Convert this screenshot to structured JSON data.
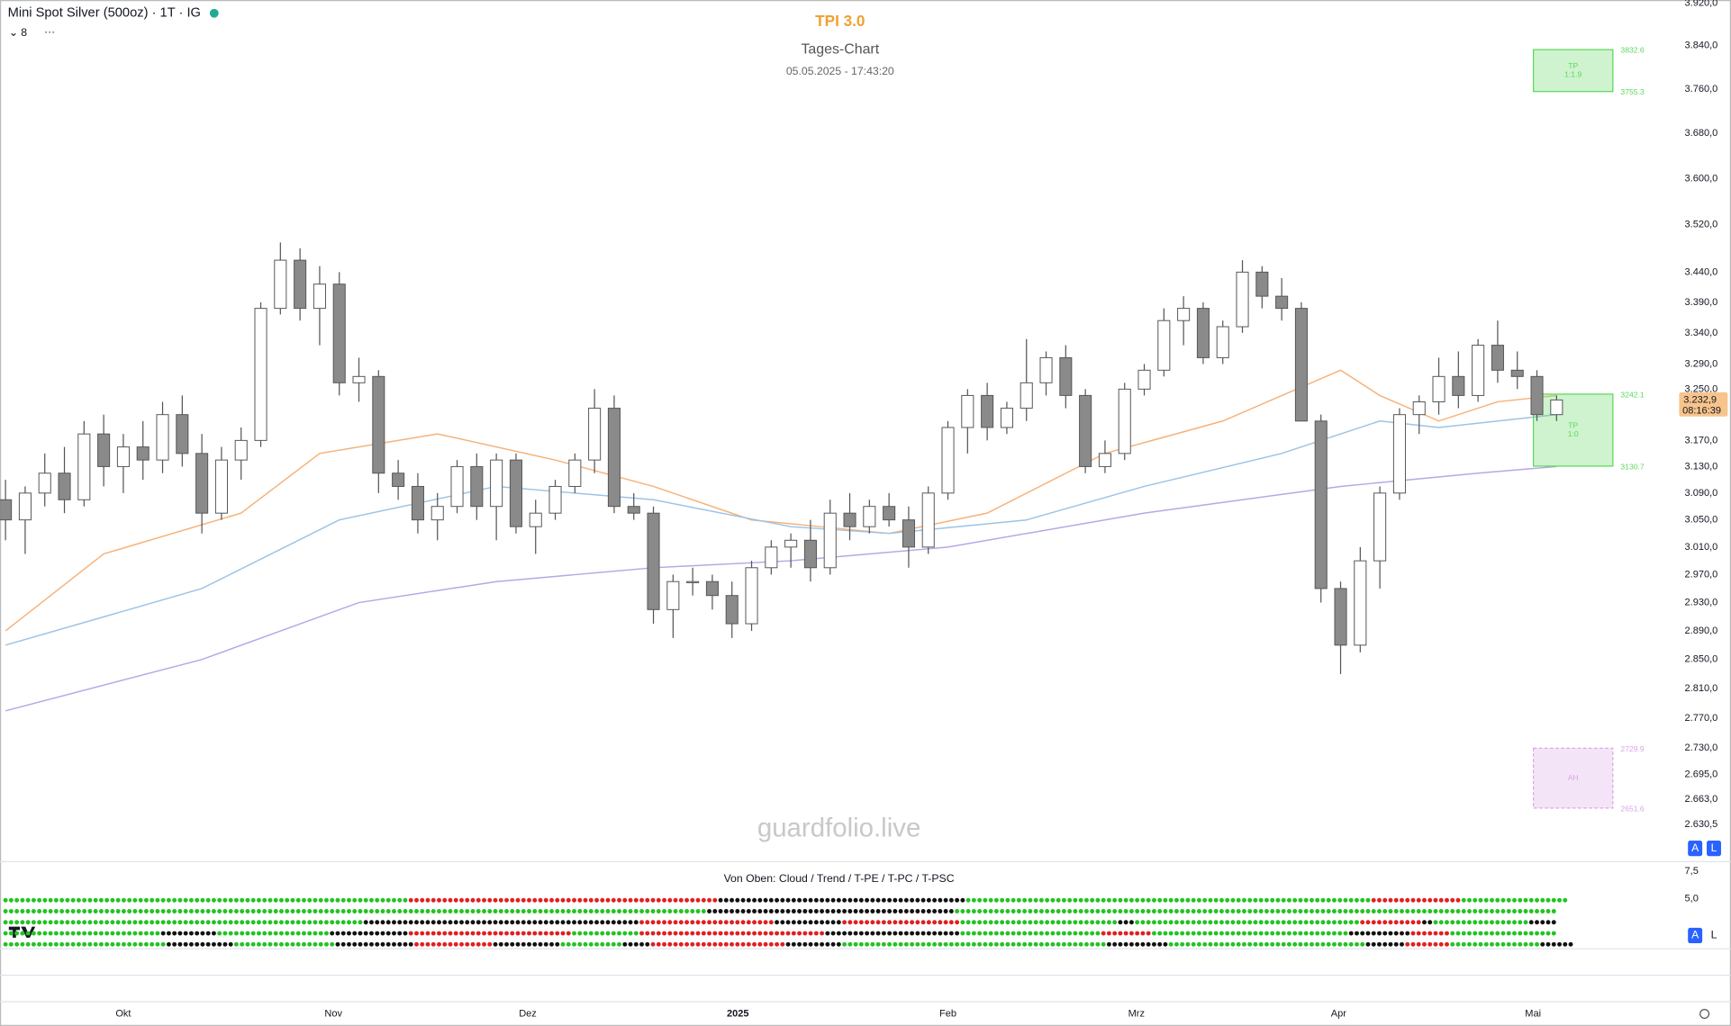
{
  "chart_data": {
    "type": "candlestick",
    "title": "TPI 3.0",
    "subtitle": "Tages-Chart",
    "timestamp": "05.05.2025 - 17:43:20",
    "symbol": "Mini Spot Silver (500oz) · 1T · IG",
    "interval_badge": "8",
    "watermark": "guardfolio.live",
    "log_scale": true,
    "grid": false,
    "up_color": "#ffffff",
    "down_color": "#8a8a8a",
    "candles": [
      [
        3080,
        3110,
        3020,
        3050
      ],
      [
        3050,
        3100,
        3000,
        3090
      ],
      [
        3090,
        3150,
        3070,
        3120
      ],
      [
        3120,
        3160,
        3060,
        3080
      ],
      [
        3080,
        3200,
        3070,
        3180
      ],
      [
        3180,
        3210,
        3100,
        3130
      ],
      [
        3130,
        3180,
        3090,
        3160
      ],
      [
        3160,
        3200,
        3110,
        3140
      ],
      [
        3140,
        3230,
        3120,
        3210
      ],
      [
        3210,
        3240,
        3130,
        3150
      ],
      [
        3150,
        3180,
        3030,
        3060
      ],
      [
        3060,
        3160,
        3050,
        3140
      ],
      [
        3140,
        3190,
        3110,
        3170
      ],
      [
        3170,
        3390,
        3160,
        3380
      ],
      [
        3380,
        3490,
        3370,
        3460
      ],
      [
        3460,
        3480,
        3360,
        3380
      ],
      [
        3380,
        3450,
        3320,
        3420
      ],
      [
        3420,
        3440,
        3240,
        3260
      ],
      [
        3260,
        3300,
        3230,
        3270
      ],
      [
        3270,
        3280,
        3090,
        3120
      ],
      [
        3120,
        3140,
        3080,
        3100
      ],
      [
        3100,
        3120,
        3030,
        3050
      ],
      [
        3050,
        3090,
        3020,
        3070
      ],
      [
        3070,
        3140,
        3060,
        3130
      ],
      [
        3130,
        3150,
        3050,
        3070
      ],
      [
        3070,
        3150,
        3020,
        3140
      ],
      [
        3140,
        3150,
        3030,
        3040
      ],
      [
        3040,
        3080,
        3000,
        3060
      ],
      [
        3060,
        3110,
        3050,
        3100
      ],
      [
        3100,
        3150,
        3090,
        3140
      ],
      [
        3140,
        3250,
        3120,
        3220
      ],
      [
        3220,
        3240,
        3060,
        3070
      ],
      [
        3070,
        3090,
        3050,
        3060
      ],
      [
        3060,
        3070,
        2900,
        2920
      ],
      [
        2920,
        2970,
        2880,
        2960
      ],
      [
        2960,
        2980,
        2940,
        2960
      ],
      [
        2960,
        2970,
        2920,
        2940
      ],
      [
        2940,
        2960,
        2880,
        2900
      ],
      [
        2900,
        2990,
        2890,
        2980
      ],
      [
        2980,
        3020,
        2970,
        3010
      ],
      [
        3010,
        3030,
        2980,
        3020
      ],
      [
        3020,
        3050,
        2960,
        2980
      ],
      [
        2980,
        3080,
        2970,
        3060
      ],
      [
        3060,
        3090,
        3020,
        3040
      ],
      [
        3040,
        3080,
        3030,
        3070
      ],
      [
        3070,
        3090,
        3040,
        3050
      ],
      [
        3050,
        3070,
        2980,
        3010
      ],
      [
        3010,
        3100,
        3000,
        3090
      ],
      [
        3090,
        3200,
        3080,
        3190
      ],
      [
        3190,
        3250,
        3150,
        3240
      ],
      [
        3240,
        3260,
        3170,
        3190
      ],
      [
        3190,
        3230,
        3180,
        3220
      ],
      [
        3220,
        3330,
        3200,
        3260
      ],
      [
        3260,
        3310,
        3240,
        3300
      ],
      [
        3300,
        3320,
        3220,
        3240
      ],
      [
        3240,
        3250,
        3120,
        3130
      ],
      [
        3130,
        3170,
        3120,
        3150
      ],
      [
        3150,
        3260,
        3140,
        3250
      ],
      [
        3250,
        3290,
        3240,
        3280
      ],
      [
        3280,
        3380,
        3270,
        3360
      ],
      [
        3360,
        3400,
        3320,
        3380
      ],
      [
        3380,
        3390,
        3290,
        3300
      ],
      [
        3300,
        3360,
        3290,
        3350
      ],
      [
        3350,
        3460,
        3340,
        3440
      ],
      [
        3440,
        3450,
        3380,
        3400
      ],
      [
        3400,
        3430,
        3360,
        3380
      ],
      [
        3380,
        3390,
        3200,
        3200
      ],
      [
        3200,
        3210,
        2930,
        2950
      ],
      [
        2950,
        2960,
        2830,
        2870
      ],
      [
        2870,
        3010,
        2860,
        2990
      ],
      [
        2990,
        3100,
        2950,
        3090
      ],
      [
        3090,
        3220,
        3080,
        3210
      ],
      [
        3210,
        3240,
        3180,
        3230
      ],
      [
        3230,
        3300,
        3210,
        3270
      ],
      [
        3270,
        3310,
        3220,
        3240
      ],
      [
        3240,
        3330,
        3230,
        3320
      ],
      [
        3320,
        3360,
        3260,
        3280
      ],
      [
        3280,
        3310,
        3250,
        3270
      ],
      [
        3270,
        3280,
        3200,
        3210
      ],
      [
        3210,
        3240,
        3200,
        3232.9
      ]
    ],
    "xlim": [
      0,
      79
    ],
    "xticks": [
      {
        "value": 6,
        "label": "Okt"
      },
      {
        "value": 16.7,
        "label": "Nov"
      },
      {
        "value": 26.6,
        "label": "Dez"
      },
      {
        "value": 37.3,
        "label": "2025"
      },
      {
        "value": 48,
        "label": "Feb"
      },
      {
        "value": 57.6,
        "label": "Mrz"
      },
      {
        "value": 67.9,
        "label": "Apr"
      },
      {
        "value": 77.8,
        "label": "Mai"
      }
    ],
    "ylim": [
      2585,
      3926
    ],
    "yticks": [
      {
        "value": 3920,
        "label": "3.920,0"
      },
      {
        "value": 3840,
        "label": "3.840,0"
      },
      {
        "value": 3760,
        "label": "3.760,0"
      },
      {
        "value": 3680,
        "label": "3.680,0"
      },
      {
        "value": 3600,
        "label": "3.600,0"
      },
      {
        "value": 3520,
        "label": "3.520,0"
      },
      {
        "value": 3440,
        "label": "3.440,0"
      },
      {
        "value": 3390,
        "label": "3.390,0"
      },
      {
        "value": 3340,
        "label": "3.340,0"
      },
      {
        "value": 3290,
        "label": "3.290,0"
      },
      {
        "value": 3250,
        "label": "3.250,0"
      },
      {
        "value": 3170,
        "label": "3.170,0"
      },
      {
        "value": 3130,
        "label": "3.130,0"
      },
      {
        "value": 3090,
        "label": "3.090,0"
      },
      {
        "value": 3050,
        "label": "3.050,0"
      },
      {
        "value": 3010,
        "label": "3.010,0"
      },
      {
        "value": 2970,
        "label": "2.970,0"
      },
      {
        "value": 2930,
        "label": "2.930,0"
      },
      {
        "value": 2890,
        "label": "2.890,0"
      },
      {
        "value": 2850,
        "label": "2.850,0"
      },
      {
        "value": 2810,
        "label": "2.810,0"
      },
      {
        "value": 2770,
        "label": "2.770,0"
      },
      {
        "value": 2730,
        "label": "2.730,0"
      },
      {
        "value": 2695,
        "label": "2.695,0"
      },
      {
        "value": 2663,
        "label": "2.663,0"
      },
      {
        "value": 2630.5,
        "label": "2.630,5"
      }
    ],
    "moving_averages": [
      {
        "color": "#f5b27a",
        "x": [
          0,
          5,
          12,
          16,
          22,
          28,
          33,
          38,
          45,
          50,
          56,
          62,
          68,
          70,
          73,
          76,
          79
        ],
        "values": [
          2890,
          3000,
          3060,
          3150,
          3180,
          3140,
          3100,
          3050,
          3030,
          3060,
          3150,
          3200,
          3280,
          3240,
          3200,
          3230,
          3240
        ]
      },
      {
        "color": "#9cc3e6",
        "x": [
          0,
          10,
          17,
          25,
          33,
          40,
          45,
          52,
          58,
          65,
          70,
          73,
          79
        ],
        "values": [
          2870,
          2950,
          3050,
          3100,
          3080,
          3040,
          3030,
          3050,
          3100,
          3150,
          3200,
          3190,
          3210
        ]
      },
      {
        "color": "#b9a6e6",
        "x": [
          0,
          10,
          18,
          25,
          33,
          40,
          48,
          58,
          68,
          75,
          79
        ],
        "values": [
          2780,
          2850,
          2930,
          2960,
          2980,
          2990,
          3010,
          3060,
          3100,
          3120,
          3130
        ]
      }
    ],
    "zones": [
      {
        "label": [
          "TP",
          "1:1.9"
        ],
        "top": 3832.6,
        "bottom": 3755.3,
        "color": "#5cd65c"
      },
      {
        "label": [
          "TP",
          "1:0"
        ],
        "top": 3242.1,
        "bottom": 3130.7,
        "color": "#5cd65c"
      },
      {
        "label": [
          "AH"
        ],
        "top": 2729.9,
        "bottom": 2651.6,
        "color": "#d9a6e6"
      }
    ],
    "last_price": {
      "label": "3.232,9",
      "countdown": "08:16:39",
      "color": "#f7c48c"
    },
    "scale_buttons": [
      "A",
      "L"
    ],
    "indicator": {
      "title": "Von Oben: Cloud / Trend / T-PE / T-PC / T-PSC",
      "ylim": [
        0.4,
        8.4
      ],
      "yticks": [
        {
          "value": 7.5,
          "label": "7,5"
        },
        {
          "value": 5,
          "label": "5,0"
        }
      ],
      "rows": [
        {
          "runs": [
            [
              "#22c322",
              72
            ],
            [
              "#e02020",
              55
            ],
            [
              "#111111",
              44
            ],
            [
              "#22c322",
              72
            ],
            [
              "#e02020",
              16
            ],
            [
              "#22c322",
              19
            ]
          ]
        },
        {
          "runs": [
            [
              "#22c322",
              125
            ],
            [
              "#111111",
              44
            ],
            [
              "#22c322",
              107
            ]
          ]
        },
        {
          "runs": [
            [
              "#22c322",
              64
            ],
            [
              "#111111",
              49
            ],
            [
              "#e02020",
              24
            ],
            [
              "#111111",
              12
            ],
            [
              "#e02020",
              21
            ],
            [
              "#22c322",
              28
            ],
            [
              "#111111",
              3
            ],
            [
              "#22c322",
              40
            ],
            [
              "#e02020",
              11
            ],
            [
              "#111111",
              2
            ],
            [
              "#22c322",
              17
            ],
            [
              "#111111",
              5
            ]
          ]
        },
        {
          "runs": [
            [
              "#22c322",
              28
            ],
            [
              "#111111",
              10
            ],
            [
              "#22c322",
              20
            ],
            [
              "#111111",
              14
            ],
            [
              "#e02020",
              29
            ],
            [
              "#22c322",
              12
            ],
            [
              "#e02020",
              33
            ],
            [
              "#111111",
              24
            ],
            [
              "#22c322",
              25
            ],
            [
              "#e02020",
              9
            ],
            [
              "#22c322",
              35
            ],
            [
              "#111111",
              11
            ],
            [
              "#e02020",
              7
            ],
            [
              "#22c322",
              19
            ]
          ]
        },
        {
          "runs": [
            [
              "#22c322",
              29
            ],
            [
              "#111111",
              12
            ],
            [
              "#22c322",
              18
            ],
            [
              "#111111",
              14
            ],
            [
              "#e02020",
              14
            ],
            [
              "#111111",
              12
            ],
            [
              "#22c322",
              11
            ],
            [
              "#111111",
              5
            ],
            [
              "#e02020",
              24
            ],
            [
              "#111111",
              10
            ],
            [
              "#22c322",
              47
            ],
            [
              "#111111",
              11
            ],
            [
              "#22c322",
              35
            ],
            [
              "#111111",
              7
            ],
            [
              "#e02020",
              8
            ],
            [
              "#22c322",
              16
            ],
            [
              "#111111",
              6
            ]
          ]
        }
      ]
    }
  }
}
